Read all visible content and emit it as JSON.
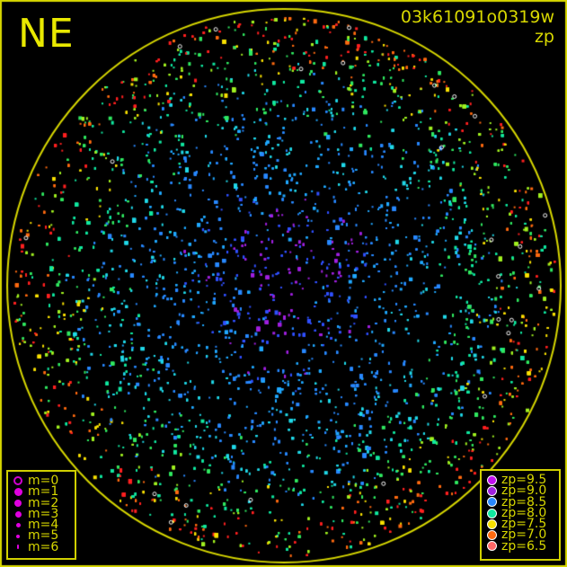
{
  "direction_label": "NE",
  "title": {
    "id": "03k61091o0319w",
    "quantity": "zp"
  },
  "colors": {
    "frame": "#d8d800",
    "background": "#000000"
  },
  "magnitude_legend": [
    {
      "label": "m=0",
      "hollow": true,
      "size": 10
    },
    {
      "label": "m=1",
      "size": 9
    },
    {
      "label": "m=2",
      "size": 8
    },
    {
      "label": "m=3",
      "size": 7
    },
    {
      "label": "m=4",
      "size": 5
    },
    {
      "label": "m=5",
      "size": 4
    },
    {
      "label": "m=6",
      "size": 3
    }
  ],
  "zp_legend": [
    {
      "label": "zp=9.5",
      "color": "#c010f0"
    },
    {
      "label": "zp=9.0",
      "color": "#a020e0"
    },
    {
      "label": "zp=8.5",
      "color": "#2888ff"
    },
    {
      "label": "zp=8.0",
      "color": "#10e8a0"
    },
    {
      "label": "zp=7.5",
      "color": "#f8e000"
    },
    {
      "label": "zp=7.0",
      "color": "#ff6a10"
    },
    {
      "label": "zp=6.5",
      "color": "#ff6868"
    }
  ]
}
